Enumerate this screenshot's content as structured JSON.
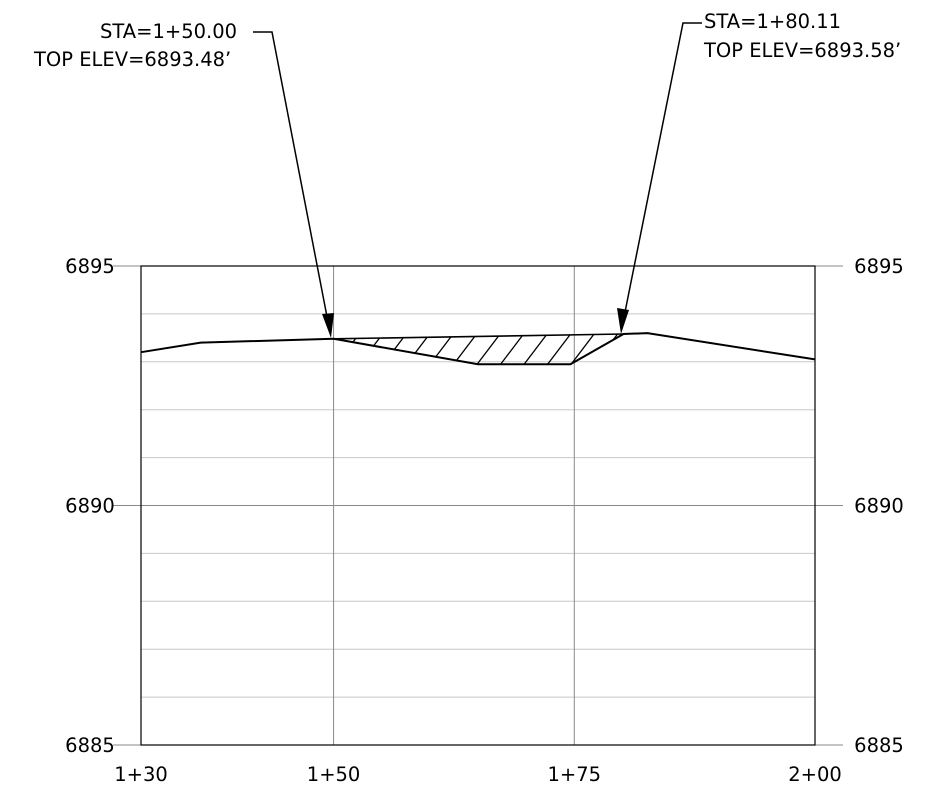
{
  "callouts": [
    {
      "station_label": "STA=1+50.00",
      "elev_label": "TOP  ELEV=6893.48’",
      "station": 150.0,
      "elevation": 6893.48
    },
    {
      "station_label": "STA=1+80.11",
      "elev_label": "TOP  ELEV=6893.58’",
      "station": 180.11,
      "elevation": 6893.58
    }
  ],
  "chart_data": {
    "type": "line",
    "title": "",
    "xlabel": "",
    "ylabel": "",
    "xlim": [
      130,
      200
    ],
    "ylim": [
      6885,
      6895
    ],
    "x_ticks": [
      {
        "value": 130,
        "label": "1+30"
      },
      {
        "value": 150,
        "label": "1+50"
      },
      {
        "value": 175,
        "label": "1+75"
      },
      {
        "value": 200,
        "label": "2+00"
      }
    ],
    "y_ticks": [
      {
        "value": 6895,
        "label": "6895"
      },
      {
        "value": 6890,
        "label": "6890"
      },
      {
        "value": 6885,
        "label": "6885"
      }
    ],
    "minor_y_gridlines": [
      6894,
      6893,
      6892,
      6891,
      6889,
      6888,
      6887,
      6886
    ],
    "series": [
      {
        "kind": "ground",
        "points": [
          [
            130.0,
            6893.2
          ],
          [
            136.2,
            6893.4
          ],
          [
            150.0,
            6893.48
          ],
          [
            165.0,
            6892.95
          ],
          [
            174.6,
            6892.95
          ],
          [
            180.11,
            6893.58
          ],
          [
            182.6,
            6893.6
          ],
          [
            200.0,
            6893.05
          ]
        ]
      },
      {
        "kind": "top",
        "points": [
          [
            150.0,
            6893.48
          ],
          [
            180.11,
            6893.58
          ]
        ]
      }
    ],
    "fill_region": "hatched area between top line and ground from 1+50.00 to 1+80.11",
    "grid": true,
    "legend": "none"
  }
}
